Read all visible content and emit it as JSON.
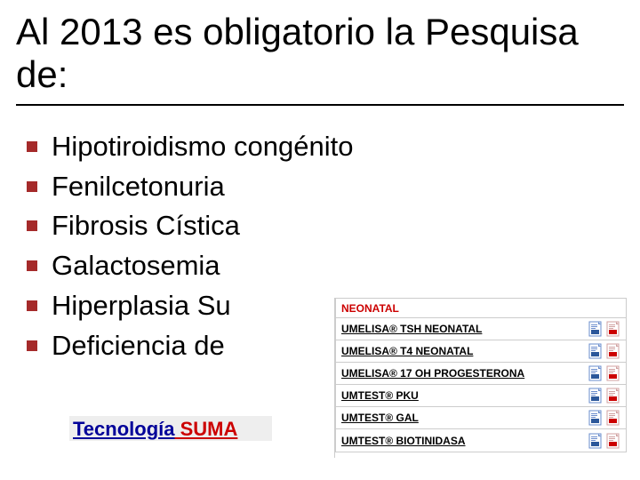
{
  "title": "Al 2013 es obligatorio la Pesquisa de:",
  "bullet_color": "#a52a2a",
  "bullets": [
    "Hipotiroidismo congénito",
    "Fenilcetonuria",
    "Fibrosis Cística",
    "Galactosemia",
    "Hiperplasia Su",
    "Deficiencia de"
  ],
  "tech": {
    "part1": "Tecnología",
    "part2": " SUMA"
  },
  "product_box": {
    "header": "NEONATAL",
    "header_color": "#cc0000",
    "rows": [
      {
        "name": "UMELISA® TSH NEONATAL"
      },
      {
        "name": "UMELISA® T4 NEONATAL"
      },
      {
        "name": "UMELISA® 17 OH PROGESTERONA"
      },
      {
        "name": "UMTEST® PKU"
      },
      {
        "name": "UMTEST® GAL"
      },
      {
        "name": "UMTEST® BIOTINIDASA"
      }
    ]
  },
  "icons": {
    "word_colors": {
      "page": "#ffffff",
      "border": "#6a8ccc",
      "accent": "#2b579a"
    },
    "pdf_colors": {
      "page": "#ffffff",
      "border": "#d0a0a0",
      "accent": "#cc0000"
    }
  }
}
